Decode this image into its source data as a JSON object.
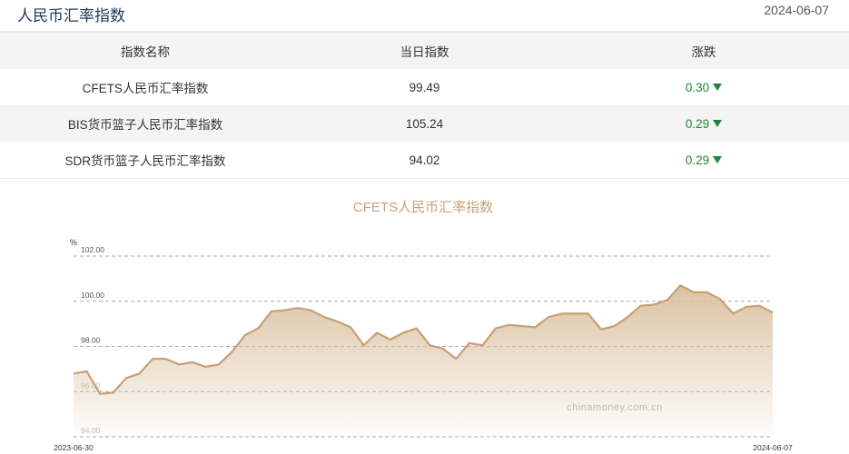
{
  "header": {
    "title": "人民币汇率指数",
    "date": "2024-06-07"
  },
  "table": {
    "columns": [
      "指数名称",
      "当日指数",
      "涨跌"
    ],
    "rows": [
      {
        "name": "CFETS人民币汇率指数",
        "value": "99.49",
        "change": "0.30",
        "direction": "down"
      },
      {
        "name": "BIS货币篮子人民币汇率指数",
        "value": "105.24",
        "change": "0.29",
        "direction": "down"
      },
      {
        "name": "SDR货币篮子人民币汇率指数",
        "value": "94.02",
        "change": "0.29",
        "direction": "down"
      }
    ],
    "down_color": "#1a8a3a"
  },
  "chart_data": {
    "type": "area",
    "title": "CFETS人民币汇率指数",
    "ylabel": "%",
    "ylim": [
      94,
      102
    ],
    "yticks": [
      "102.00",
      "100.00",
      "98.00",
      "96.00",
      "94.00"
    ],
    "x_start": "2023-06-30",
    "x_end": "2024-06-07",
    "grid": true,
    "watermark": "chinamoney.com.cn",
    "line_color": "#c89f72",
    "values": [
      96.8,
      96.9,
      95.9,
      95.95,
      96.6,
      96.8,
      97.45,
      97.45,
      97.2,
      97.3,
      97.1,
      97.2,
      97.75,
      98.5,
      98.8,
      99.55,
      99.6,
      99.7,
      99.6,
      99.3,
      99.1,
      98.85,
      98.05,
      98.6,
      98.3,
      98.6,
      98.8,
      98.05,
      97.9,
      97.45,
      98.15,
      98.05,
      98.8,
      98.95,
      98.9,
      98.85,
      99.3,
      99.45,
      99.45,
      99.45,
      98.75,
      98.9,
      99.3,
      99.8,
      99.85,
      100.05,
      100.7,
      100.4,
      100.4,
      100.1,
      99.45,
      99.75,
      99.8,
      99.49
    ]
  }
}
